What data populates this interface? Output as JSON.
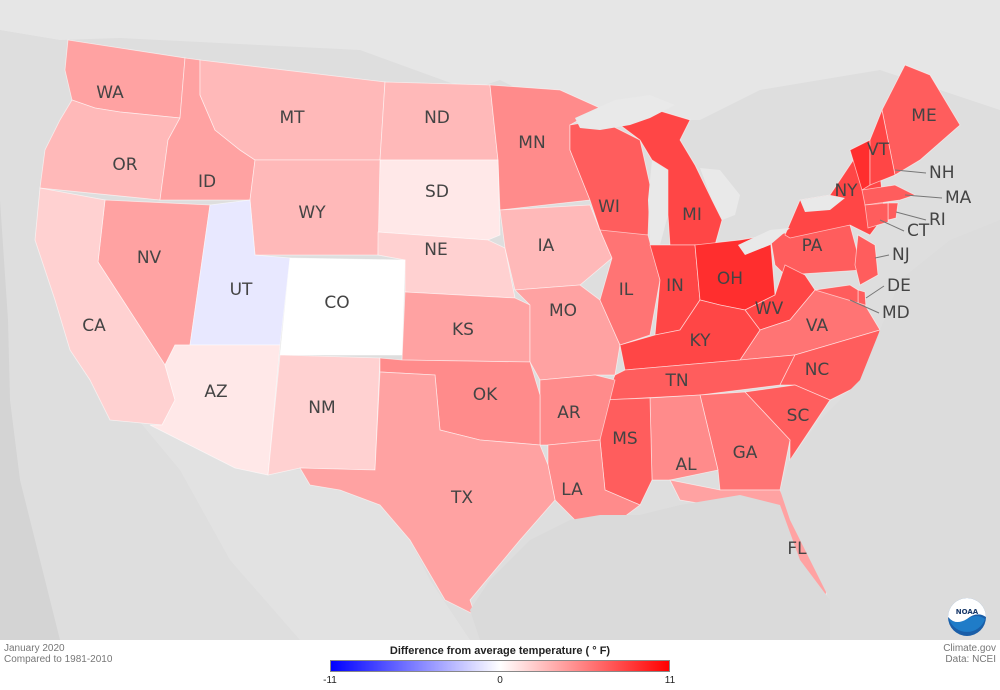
{
  "states": [
    {
      "abbr": "WA",
      "value": 4
    },
    {
      "abbr": "OR",
      "value": 3
    },
    {
      "abbr": "ID",
      "value": 4
    },
    {
      "abbr": "MT",
      "value": 3
    },
    {
      "abbr": "ND",
      "value": 3
    },
    {
      "abbr": "MN",
      "value": 5
    },
    {
      "abbr": "SD",
      "value": 1
    },
    {
      "abbr": "WY",
      "value": 3
    },
    {
      "abbr": "NE",
      "value": 2
    },
    {
      "abbr": "IA",
      "value": 3
    },
    {
      "abbr": "WI",
      "value": 7
    },
    {
      "abbr": "MI",
      "value": 8
    },
    {
      "abbr": "NV",
      "value": 4
    },
    {
      "abbr": "UT",
      "value": -1
    },
    {
      "abbr": "CO",
      "value": 0
    },
    {
      "abbr": "CA",
      "value": 2
    },
    {
      "abbr": "AZ",
      "value": 1
    },
    {
      "abbr": "NM",
      "value": 2
    },
    {
      "abbr": "KS",
      "value": 4
    },
    {
      "abbr": "MO",
      "value": 4
    },
    {
      "abbr": "IL",
      "value": 6
    },
    {
      "abbr": "IN",
      "value": 8
    },
    {
      "abbr": "OH",
      "value": 9
    },
    {
      "abbr": "PA",
      "value": 7
    },
    {
      "abbr": "NY",
      "value": 8
    },
    {
      "abbr": "VT",
      "value": 9
    },
    {
      "abbr": "ME",
      "value": 7
    },
    {
      "abbr": "NH",
      "value": 8
    },
    {
      "abbr": "MA",
      "value": 7
    },
    {
      "abbr": "RI",
      "value": 7
    },
    {
      "abbr": "CT",
      "value": 7
    },
    {
      "abbr": "NJ",
      "value": 7
    },
    {
      "abbr": "DE",
      "value": 7
    },
    {
      "abbr": "MD",
      "value": 7
    },
    {
      "abbr": "WV",
      "value": 8
    },
    {
      "abbr": "VA",
      "value": 6
    },
    {
      "abbr": "KY",
      "value": 8
    },
    {
      "abbr": "TN",
      "value": 7
    },
    {
      "abbr": "NC",
      "value": 7
    },
    {
      "abbr": "SC",
      "value": 7
    },
    {
      "abbr": "GA",
      "value": 6
    },
    {
      "abbr": "AL",
      "value": 5
    },
    {
      "abbr": "MS",
      "value": 7
    },
    {
      "abbr": "AR",
      "value": 5
    },
    {
      "abbr": "LA",
      "value": 5
    },
    {
      "abbr": "OK",
      "value": 5
    },
    {
      "abbr": "TX",
      "value": 4
    },
    {
      "abbr": "FL",
      "value": 4
    }
  ],
  "legend": {
    "title": "Difference from average temperature ( ° F)",
    "min_label": "-11",
    "mid_label": "0",
    "max_label": "11",
    "min_color": "#0000ff",
    "mid_color": "#ffffff",
    "max_color": "#ff0000"
  },
  "footer": {
    "date": "January 2020",
    "baseline": "Compared to 1981-2010",
    "source_site": "Climate.gov",
    "data_source": "Data: NCEI"
  },
  "logo": {
    "text": "NOAA"
  }
}
